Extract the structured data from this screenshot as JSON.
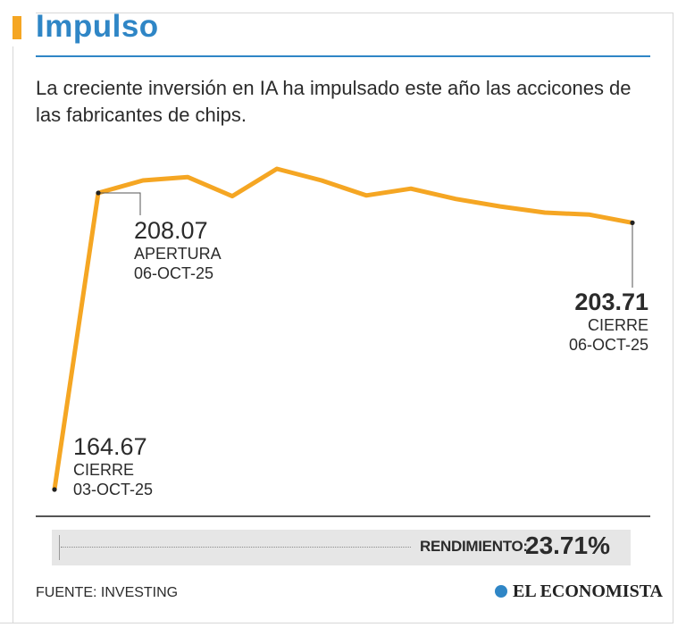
{
  "header": {
    "title": "Impulso",
    "subtitle": "La creciente inversión en IA ha impulsado este año las accicones de las fabricantes de chips."
  },
  "chart_data": {
    "type": "line",
    "title": "Impulso",
    "values": [
      164.67,
      208.07,
      209.9,
      210.4,
      207.6,
      211.6,
      209.9,
      207.7,
      208.7,
      207.2,
      206.1,
      205.2,
      204.9,
      203.71
    ],
    "ylim": [
      164.67,
      211.6
    ],
    "annotations": [
      {
        "value": "208.07",
        "label": "APERTURA",
        "date": "06-OCT-25"
      },
      {
        "value": "164.67",
        "label": "CIERRE",
        "date": "03-OCT-25"
      },
      {
        "value": "203.71",
        "label": "CIERRE",
        "date": "06-OCT-25"
      }
    ]
  },
  "performance": {
    "label": "RENDIMIENTO:",
    "value": "23.71%"
  },
  "footer": {
    "source": "FUENTE: INVESTING",
    "brand": "EL ECONOMISTA"
  },
  "colors": {
    "line": "#f5a623",
    "title": "#2f86c6"
  }
}
